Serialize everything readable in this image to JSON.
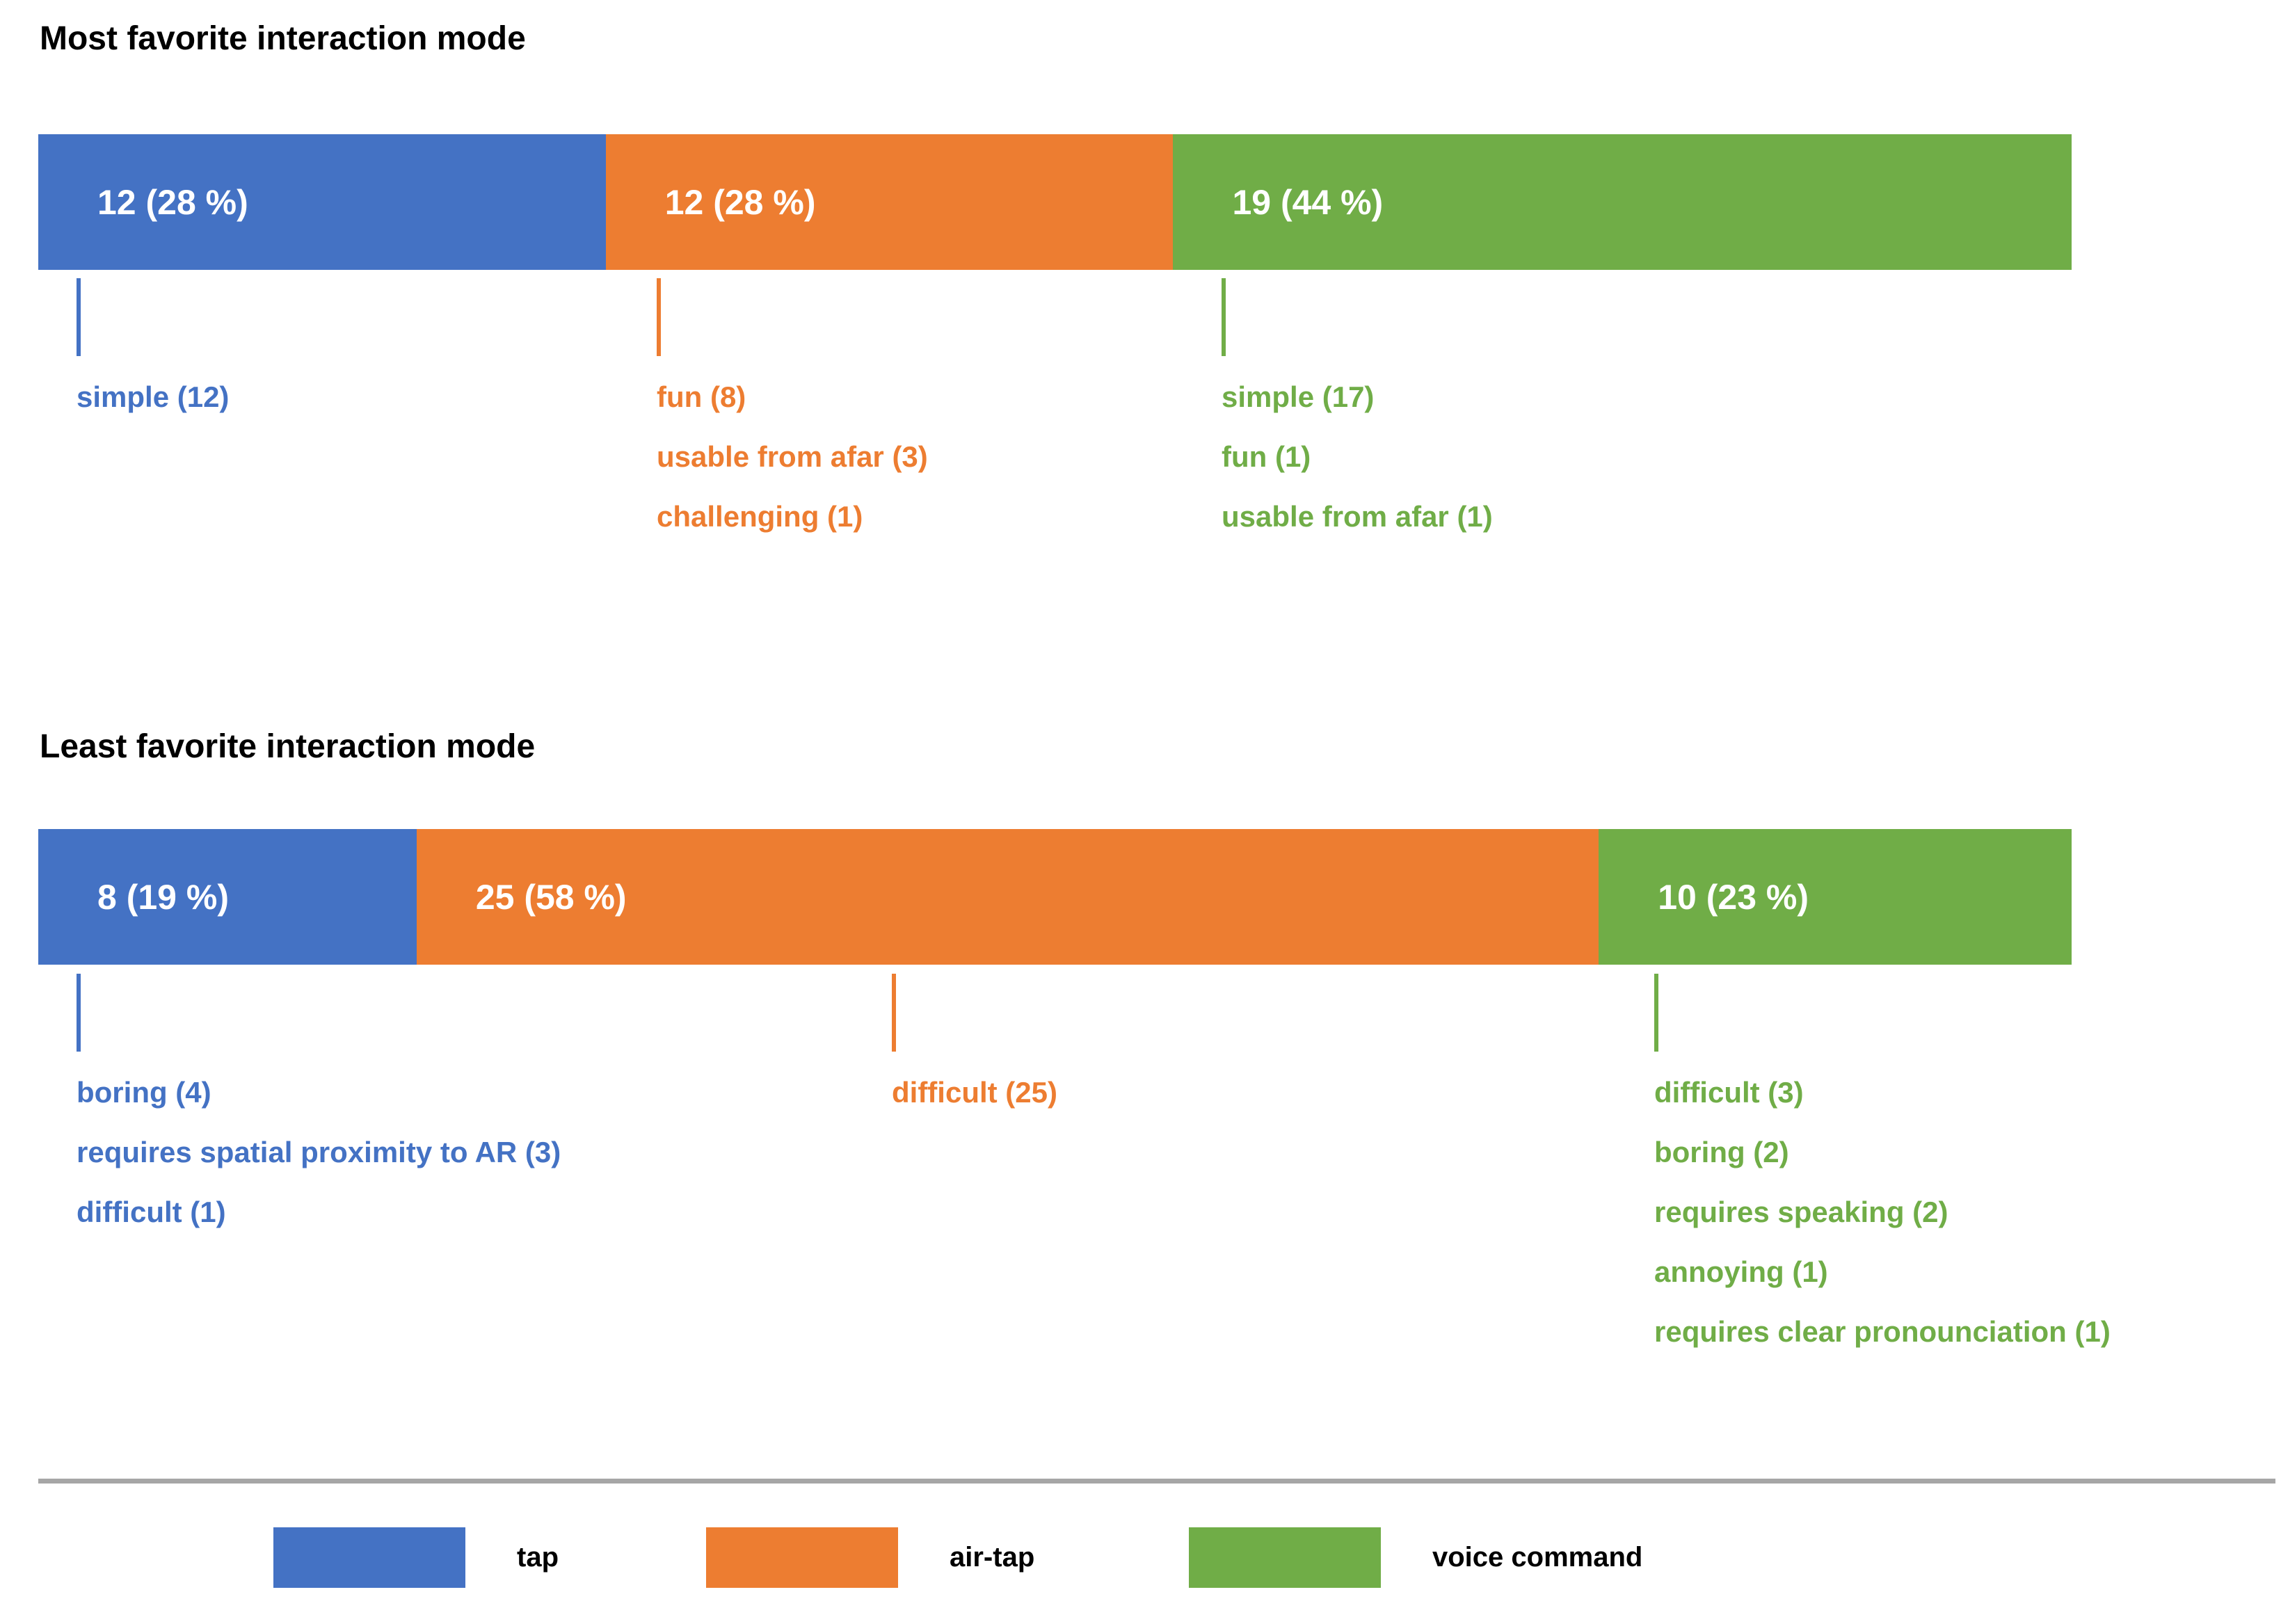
{
  "colors": {
    "tap": "#4472C4",
    "air_tap": "#ED7D31",
    "voice_command": "#70AD47",
    "divider": "#A6A6A6",
    "bar_label_text": "#ffffff",
    "title_text": "#000000"
  },
  "chart_data": [
    {
      "type": "bar",
      "stacked": true,
      "orientation": "horizontal",
      "title": "Most favorite interaction mode",
      "categories": [
        "tap",
        "air-tap",
        "voice command"
      ],
      "values": [
        12,
        12,
        19
      ],
      "percents": [
        28,
        28,
        44
      ],
      "total": 43,
      "bar_labels": [
        "12 (28 %)",
        "12 (28 %)",
        "19 (44 %)"
      ],
      "annotations": {
        "tap": [
          "simple (12)"
        ],
        "air_tap": [
          "fun (8)",
          "usable from afar (3)",
          "challenging (1)"
        ],
        "voice_command": [
          "simple (17)",
          "fun (1)",
          "usable from afar (1)"
        ]
      }
    },
    {
      "type": "bar",
      "stacked": true,
      "orientation": "horizontal",
      "title": "Least favorite interaction mode",
      "categories": [
        "tap",
        "air-tap",
        "voice command"
      ],
      "values": [
        8,
        25,
        10
      ],
      "percents": [
        19,
        58,
        23
      ],
      "total": 43,
      "bar_labels": [
        "8 (19 %)",
        "25 (58 %)",
        "10 (23 %)"
      ],
      "annotations": {
        "tap": [
          "boring (4)",
          "requires spatial proximity to AR (3)",
          "difficult (1)"
        ],
        "air_tap": [
          "difficult (25)"
        ],
        "voice_command": [
          "difficult (3)",
          "boring (2)",
          "requires speaking (2)",
          "annoying (1)",
          "requires clear pronounciation (1)"
        ]
      }
    }
  ],
  "legend": {
    "items": [
      {
        "label": "tap",
        "color": "#4472C4"
      },
      {
        "label": "air-tap",
        "color": "#ED7D31"
      },
      {
        "label": "voice command",
        "color": "#70AD47"
      }
    ]
  }
}
